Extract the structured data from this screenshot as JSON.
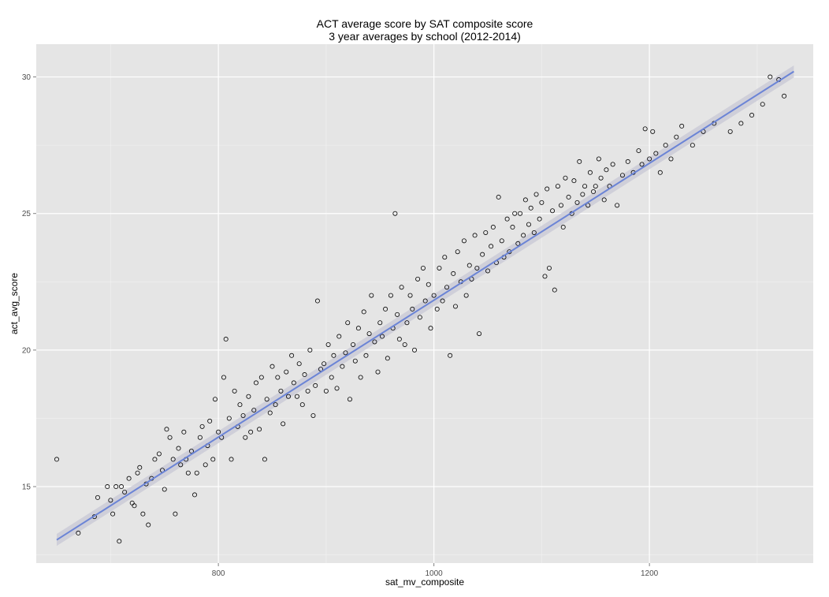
{
  "chart_data": {
    "type": "scatter",
    "title": "ACT average score by SAT composite score",
    "subtitle": "3 year averages by school (2012-2014)",
    "xlabel": "sat_mv_composite",
    "ylabel": "act_avg_score",
    "xlim": [
      631,
      1352
    ],
    "ylim": [
      12.2,
      31.2
    ],
    "x_ticks": [
      800,
      1000,
      1200
    ],
    "y_ticks": [
      15,
      20,
      25,
      30
    ],
    "grid": true,
    "legend": "none",
    "colors": {
      "panel_bg": "#e5e5e5",
      "grid_major": "#ffffff",
      "point_stroke": "#000000",
      "fit_line": "#6b84d6",
      "fit_band": "#c9c9d6"
    },
    "trend_line": {
      "x": [
        650,
        1334
      ],
      "y": [
        13.05,
        30.2
      ],
      "method": "linear fit with confidence band"
    },
    "points": [
      [
        650,
        16.0
      ],
      [
        670,
        13.3
      ],
      [
        685,
        13.9
      ],
      [
        688,
        14.6
      ],
      [
        697,
        15.0
      ],
      [
        700,
        14.5
      ],
      [
        702,
        14.0
      ],
      [
        705,
        15.0
      ],
      [
        708,
        13.0
      ],
      [
        710,
        15.0
      ],
      [
        713,
        14.8
      ],
      [
        717,
        15.3
      ],
      [
        720,
        14.4
      ],
      [
        722,
        14.3
      ],
      [
        725,
        15.5
      ],
      [
        727,
        15.7
      ],
      [
        730,
        14.0
      ],
      [
        733,
        15.1
      ],
      [
        735,
        13.6
      ],
      [
        738,
        15.3
      ],
      [
        741,
        16.0
      ],
      [
        745,
        16.2
      ],
      [
        748,
        15.6
      ],
      [
        750,
        14.9
      ],
      [
        752,
        17.1
      ],
      [
        755,
        16.8
      ],
      [
        758,
        16.0
      ],
      [
        760,
        14.0
      ],
      [
        763,
        16.4
      ],
      [
        765,
        15.8
      ],
      [
        768,
        17.0
      ],
      [
        770,
        16.0
      ],
      [
        772,
        15.5
      ],
      [
        775,
        16.3
      ],
      [
        778,
        14.7
      ],
      [
        780,
        15.5
      ],
      [
        783,
        16.8
      ],
      [
        785,
        17.2
      ],
      [
        788,
        15.8
      ],
      [
        790,
        16.5
      ],
      [
        792,
        17.4
      ],
      [
        795,
        16.0
      ],
      [
        797,
        18.2
      ],
      [
        800,
        17.0
      ],
      [
        803,
        16.8
      ],
      [
        805,
        19.0
      ],
      [
        807,
        20.4
      ],
      [
        810,
        17.5
      ],
      [
        812,
        16.0
      ],
      [
        815,
        18.5
      ],
      [
        818,
        17.2
      ],
      [
        820,
        18.0
      ],
      [
        823,
        17.6
      ],
      [
        825,
        16.8
      ],
      [
        828,
        18.3
      ],
      [
        830,
        17.0
      ],
      [
        833,
        17.8
      ],
      [
        835,
        18.8
      ],
      [
        838,
        17.1
      ],
      [
        840,
        19.0
      ],
      [
        843,
        16.0
      ],
      [
        845,
        18.2
      ],
      [
        848,
        17.7
      ],
      [
        850,
        19.4
      ],
      [
        853,
        18.0
      ],
      [
        855,
        19.0
      ],
      [
        858,
        18.5
      ],
      [
        860,
        17.3
      ],
      [
        863,
        19.2
      ],
      [
        865,
        18.3
      ],
      [
        868,
        19.8
      ],
      [
        870,
        18.8
      ],
      [
        873,
        18.3
      ],
      [
        875,
        19.5
      ],
      [
        878,
        18.0
      ],
      [
        880,
        19.1
      ],
      [
        883,
        18.5
      ],
      [
        885,
        20.0
      ],
      [
        888,
        17.6
      ],
      [
        890,
        18.7
      ],
      [
        892,
        21.8
      ],
      [
        895,
        19.3
      ],
      [
        898,
        19.5
      ],
      [
        900,
        18.5
      ],
      [
        902,
        20.2
      ],
      [
        905,
        19.0
      ],
      [
        907,
        19.8
      ],
      [
        910,
        18.6
      ],
      [
        912,
        20.5
      ],
      [
        915,
        19.4
      ],
      [
        918,
        19.9
      ],
      [
        920,
        21.0
      ],
      [
        922,
        18.2
      ],
      [
        925,
        20.2
      ],
      [
        927,
        19.6
      ],
      [
        930,
        20.8
      ],
      [
        932,
        19.0
      ],
      [
        935,
        21.4
      ],
      [
        937,
        19.8
      ],
      [
        940,
        20.6
      ],
      [
        942,
        22.0
      ],
      [
        945,
        20.3
      ],
      [
        948,
        19.2
      ],
      [
        950,
        21.0
      ],
      [
        952,
        20.5
      ],
      [
        955,
        21.5
      ],
      [
        957,
        19.7
      ],
      [
        960,
        22.0
      ],
      [
        962,
        20.8
      ],
      [
        964,
        25.0
      ],
      [
        966,
        21.3
      ],
      [
        968,
        20.4
      ],
      [
        970,
        22.3
      ],
      [
        973,
        20.2
      ],
      [
        975,
        21.0
      ],
      [
        978,
        22.0
      ],
      [
        980,
        21.5
      ],
      [
        982,
        20.0
      ],
      [
        985,
        22.6
      ],
      [
        987,
        21.2
      ],
      [
        990,
        23.0
      ],
      [
        992,
        21.8
      ],
      [
        995,
        22.4
      ],
      [
        997,
        20.8
      ],
      [
        1000,
        22.0
      ],
      [
        1003,
        21.5
      ],
      [
        1005,
        23.0
      ],
      [
        1008,
        21.8
      ],
      [
        1010,
        23.4
      ],
      [
        1012,
        22.3
      ],
      [
        1015,
        19.8
      ],
      [
        1018,
        22.8
      ],
      [
        1020,
        21.6
      ],
      [
        1022,
        23.6
      ],
      [
        1025,
        22.5
      ],
      [
        1028,
        24.0
      ],
      [
        1030,
        22.0
      ],
      [
        1033,
        23.1
      ],
      [
        1035,
        22.6
      ],
      [
        1038,
        24.2
      ],
      [
        1040,
        23.0
      ],
      [
        1042,
        20.6
      ],
      [
        1045,
        23.5
      ],
      [
        1048,
        24.3
      ],
      [
        1050,
        22.9
      ],
      [
        1053,
        23.8
      ],
      [
        1055,
        24.5
      ],
      [
        1058,
        23.2
      ],
      [
        1060,
        25.6
      ],
      [
        1063,
        24.0
      ],
      [
        1065,
        23.4
      ],
      [
        1068,
        24.8
      ],
      [
        1070,
        23.6
      ],
      [
        1073,
        24.5
      ],
      [
        1075,
        25.0
      ],
      [
        1078,
        23.9
      ],
      [
        1080,
        25.0
      ],
      [
        1083,
        24.2
      ],
      [
        1085,
        25.5
      ],
      [
        1088,
        24.6
      ],
      [
        1090,
        25.2
      ],
      [
        1093,
        24.3
      ],
      [
        1095,
        25.7
      ],
      [
        1098,
        24.8
      ],
      [
        1100,
        25.4
      ],
      [
        1103,
        22.7
      ],
      [
        1105,
        25.9
      ],
      [
        1107,
        23.0
      ],
      [
        1110,
        25.1
      ],
      [
        1112,
        22.2
      ],
      [
        1115,
        26.0
      ],
      [
        1118,
        25.3
      ],
      [
        1120,
        24.5
      ],
      [
        1122,
        26.3
      ],
      [
        1125,
        25.6
      ],
      [
        1128,
        25.0
      ],
      [
        1130,
        26.2
      ],
      [
        1133,
        25.4
      ],
      [
        1135,
        26.9
      ],
      [
        1138,
        25.7
      ],
      [
        1140,
        26.0
      ],
      [
        1143,
        25.3
      ],
      [
        1145,
        26.5
      ],
      [
        1148,
        25.8
      ],
      [
        1150,
        26.0
      ],
      [
        1153,
        27.0
      ],
      [
        1155,
        26.3
      ],
      [
        1158,
        25.5
      ],
      [
        1160,
        26.6
      ],
      [
        1163,
        26.0
      ],
      [
        1166,
        26.8
      ],
      [
        1170,
        25.3
      ],
      [
        1175,
        26.4
      ],
      [
        1180,
        26.9
      ],
      [
        1185,
        26.5
      ],
      [
        1190,
        27.3
      ],
      [
        1193,
        26.8
      ],
      [
        1196,
        28.1
      ],
      [
        1200,
        27.0
      ],
      [
        1203,
        28.0
      ],
      [
        1206,
        27.2
      ],
      [
        1210,
        26.5
      ],
      [
        1215,
        27.5
      ],
      [
        1220,
        27.0
      ],
      [
        1225,
        27.8
      ],
      [
        1230,
        28.2
      ],
      [
        1240,
        27.5
      ],
      [
        1250,
        28.0
      ],
      [
        1260,
        28.3
      ],
      [
        1275,
        28.0
      ],
      [
        1285,
        28.3
      ],
      [
        1295,
        28.6
      ],
      [
        1305,
        29.0
      ],
      [
        1312,
        30.0
      ],
      [
        1320,
        29.9
      ],
      [
        1325,
        29.3
      ]
    ]
  }
}
